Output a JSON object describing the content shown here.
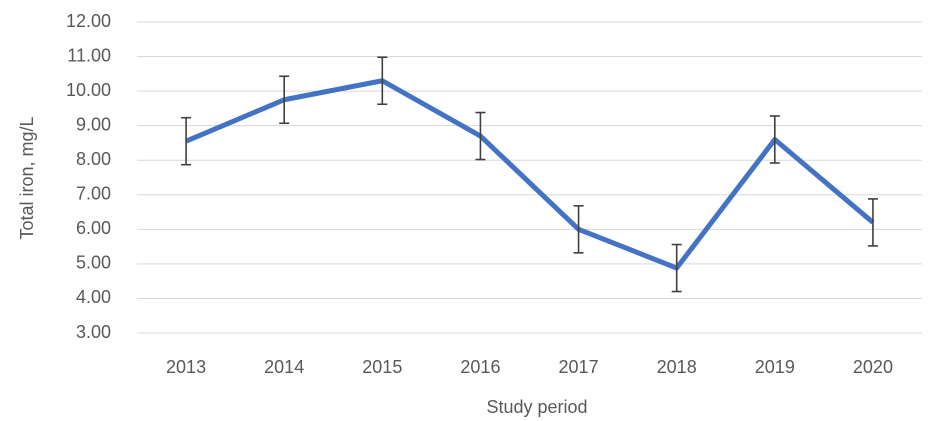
{
  "chart_data": {
    "type": "line",
    "x_label": "Study period",
    "y_label": "Total iron, mg/L",
    "categories": [
      "2013",
      "2014",
      "2015",
      "2016",
      "2017",
      "2018",
      "2019",
      "2020"
    ],
    "series": [
      {
        "name": "Total iron",
        "color": "#4472c4",
        "values": [
          8.55,
          9.75,
          10.3,
          8.7,
          6.0,
          4.88,
          8.6,
          6.2
        ],
        "errors": [
          0.68,
          0.68,
          0.68,
          0.68,
          0.68,
          0.68,
          0.68,
          0.68
        ]
      }
    ],
    "error_color": "#404040",
    "ylim": [
      3,
      12
    ],
    "yticks": [
      {
        "value": 3,
        "label": "3.00"
      },
      {
        "value": 4,
        "label": "4.00"
      },
      {
        "value": 5,
        "label": "5.00"
      },
      {
        "value": 6,
        "label": "6.00"
      },
      {
        "value": 7,
        "label": "7.00"
      },
      {
        "value": 8,
        "label": "8.00"
      },
      {
        "value": 9,
        "label": "9.00"
      },
      {
        "value": 10,
        "label": "10.00"
      },
      {
        "value": 11,
        "label": "11.00"
      },
      {
        "value": 12,
        "label": "12.00"
      }
    ],
    "grid": true
  }
}
